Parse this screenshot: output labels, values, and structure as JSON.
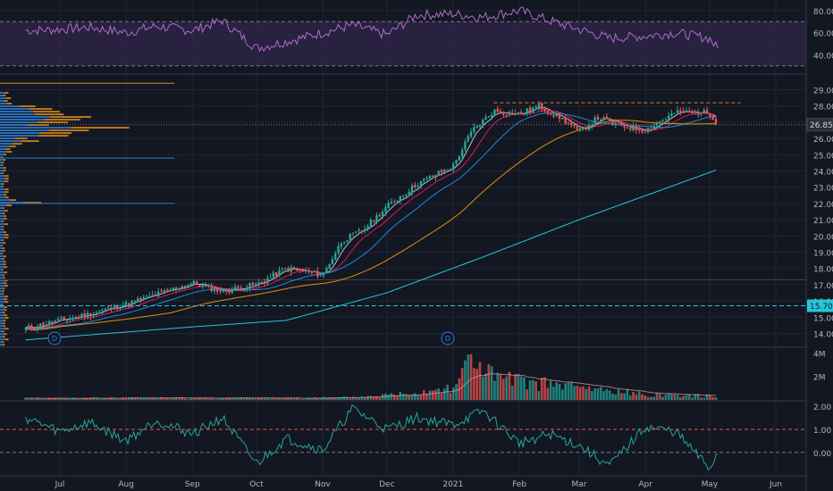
{
  "chart_data": [
    {
      "type": "line",
      "panel": "rsi",
      "title": "",
      "y_ticks": [
        40.0,
        60.0,
        80.0
      ],
      "y_tick_labels": [
        "40.00",
        "60.00",
        "80.00"
      ],
      "ylim": [
        25,
        88
      ],
      "levels": [
        70,
        30
      ],
      "band": [
        30,
        70
      ],
      "color": "#b06ccc",
      "band_color": "#3a2a5a",
      "x": [
        "Jun 15",
        "Jul 1",
        "Jul 15",
        "Aug 1",
        "Aug 15",
        "Sep 1",
        "Sep 15",
        "Oct 1",
        "Oct 15",
        "Nov 1",
        "Nov 15",
        "Dec 1",
        "Dec 15",
        "Jan 1",
        "Jan 15",
        "Feb 1",
        "Feb 15",
        "Mar 1",
        "Mar 15",
        "Apr 1",
        "Apr 15",
        "May 1",
        "May 5"
      ],
      "values": [
        62,
        63,
        65,
        60,
        66,
        62,
        71,
        46,
        52,
        60,
        67,
        58,
        76,
        77,
        74,
        80,
        71,
        63,
        55,
        57,
        60,
        55,
        45
      ]
    },
    {
      "type": "candlestick",
      "panel": "price",
      "title": "",
      "x_ticks": [
        "Jul",
        "Aug",
        "Sep",
        "Oct",
        "Nov",
        "Dec",
        "2021",
        "Feb",
        "Mar",
        "Apr",
        "May",
        "Jun"
      ],
      "y_ticks": [
        14.0,
        15.0,
        16.0,
        17.0,
        18.0,
        19.0,
        20.0,
        21.0,
        22.0,
        23.0,
        24.0,
        25.0,
        26.0,
        27.0,
        28.0,
        29.0
      ],
      "y_tick_labels": [
        "14.00",
        "15.00",
        "16.00",
        "17.00",
        "18.00",
        "19.00",
        "20.00",
        "21.00",
        "22.00",
        "23.00",
        "24.00",
        "25.00",
        "26.00",
        "27.00",
        "28.00",
        "29.00"
      ],
      "ylim": [
        13.2,
        29.8
      ],
      "last_price_label": "26.85",
      "last_price": 26.85,
      "marker_price_label": "15.70",
      "marker_price": 15.7,
      "dividend_markers": [
        {
          "date": "Jul 1",
          "label": "D"
        },
        {
          "date": "Jan 1",
          "label": "D"
        }
      ],
      "up_color": "#26a69a",
      "down_color": "#ef5350",
      "ma_colors": [
        "#d1d4dc",
        "#e91e63",
        "#2196f3",
        "#ff9800",
        "#26c6da"
      ],
      "ohlc_keypoints": [
        {
          "date": "Jun 15",
          "close": 14.3
        },
        {
          "date": "Jul 1",
          "close": 14.8
        },
        {
          "date": "Jul 15",
          "close": 15.2
        },
        {
          "date": "Aug 1",
          "close": 15.8
        },
        {
          "date": "Aug 15",
          "close": 16.4
        },
        {
          "date": "Sep 1",
          "close": 17.1
        },
        {
          "date": "Sep 15",
          "close": 16.6
        },
        {
          "date": "Oct 1",
          "close": 17.0
        },
        {
          "date": "Oct 15",
          "close": 18.0
        },
        {
          "date": "Nov 1",
          "close": 17.6
        },
        {
          "date": "Nov 10",
          "close": 19.7
        },
        {
          "date": "Nov 20",
          "close": 20.4
        },
        {
          "date": "Dec 1",
          "close": 21.8
        },
        {
          "date": "Dec 15",
          "close": 23.2
        },
        {
          "date": "Jan 1",
          "close": 24.3
        },
        {
          "date": "Jan 10",
          "close": 26.5
        },
        {
          "date": "Jan 20",
          "close": 27.7
        },
        {
          "date": "Feb 1",
          "close": 27.5
        },
        {
          "date": "Feb 10",
          "close": 28.0
        },
        {
          "date": "Feb 20",
          "close": 27.3
        },
        {
          "date": "Mar 1",
          "close": 26.4
        },
        {
          "date": "Mar 10",
          "close": 27.3
        },
        {
          "date": "Mar 20",
          "close": 26.8
        },
        {
          "date": "Apr 1",
          "close": 26.5
        },
        {
          "date": "Apr 15",
          "close": 27.6
        },
        {
          "date": "May 1",
          "close": 27.6
        },
        {
          "date": "May 5",
          "close": 26.85
        }
      ],
      "sma200_keypoints": [
        {
          "date": "Jun 15",
          "close": 13.6
        },
        {
          "date": "Sep 1",
          "close": 14.4
        },
        {
          "date": "Oct 15",
          "close": 14.8
        },
        {
          "date": "Dec 1",
          "close": 16.5
        },
        {
          "date": "Jan 15",
          "close": 18.7
        },
        {
          "date": "Mar 1",
          "close": 21.0
        },
        {
          "date": "May 5",
          "close": 24.1
        }
      ]
    },
    {
      "type": "bar",
      "panel": "volume",
      "title": "",
      "y_ticks": [
        2000000,
        4000000
      ],
      "y_tick_labels": [
        "2M",
        "4M"
      ],
      "ylim": [
        0,
        4400000
      ],
      "x": [
        "Jun 15",
        "Jul 15",
        "Aug 15",
        "Sep 15",
        "Oct 15",
        "Nov 15",
        "Dec 1",
        "Dec 15",
        "Jan 1",
        "Jan 10",
        "Jan 20",
        "Feb 1",
        "Feb 15",
        "Mar 1",
        "Mar 15",
        "Apr 1",
        "Apr 15",
        "May 5"
      ],
      "values": [
        150000,
        150000,
        180000,
        160000,
        170000,
        200000,
        450000,
        700000,
        1200000,
        3800000,
        2000000,
        1600000,
        1400000,
        1100000,
        800000,
        500000,
        450000,
        300000
      ]
    },
    {
      "type": "line",
      "panel": "oscillator",
      "title": "",
      "y_ticks": [
        0.0,
        1.0,
        2.0
      ],
      "y_tick_labels": [
        "0.00",
        "1.00",
        "2.00"
      ],
      "ylim": [
        -0.9,
        2.2
      ],
      "levels": [
        1.0,
        0.0
      ],
      "color": "#26a69a",
      "x": [
        "Jun 15",
        "Jul 1",
        "Jul 15",
        "Aug 1",
        "Aug 15",
        "Sep 1",
        "Sep 15",
        "Oct 1",
        "Oct 15",
        "Nov 1",
        "Nov 15",
        "Dec 1",
        "Dec 15",
        "Jan 1",
        "Jan 15",
        "Feb 1",
        "Feb 15",
        "Mar 1",
        "Mar 15",
        "Apr 1",
        "Apr 15",
        "May 1",
        "May 5"
      ],
      "values": [
        1.5,
        0.9,
        1.3,
        0.5,
        1.4,
        0.8,
        1.5,
        -0.5,
        0.6,
        0.1,
        1.9,
        1.0,
        1.5,
        1.2,
        1.8,
        0.4,
        0.8,
        0.3,
        -0.6,
        1.1,
        0.9,
        -0.7,
        0.0
      ]
    }
  ]
}
